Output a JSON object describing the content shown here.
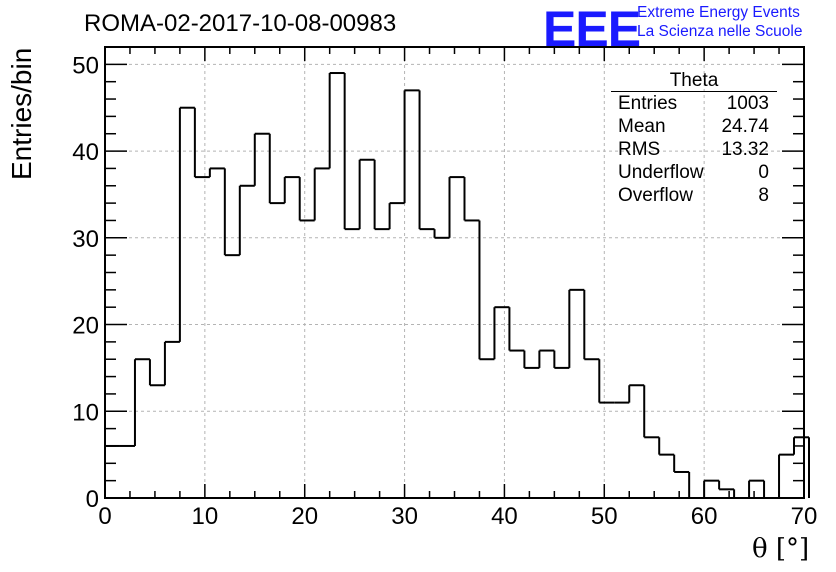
{
  "title": "ROMA-02-2017-10-08-00983",
  "logo": {
    "mark": "EEE",
    "line1": "Extreme Energy Events",
    "line2": "La Scienza nelle Scuole",
    "color": "#1a1aff"
  },
  "stats": {
    "title": "Theta",
    "rows": [
      {
        "label": "Entries",
        "value": "1003"
      },
      {
        "label": "Mean",
        "value": "24.74"
      },
      {
        "label": "RMS",
        "value": "13.32"
      },
      {
        "label": "Underflow",
        "value": "0"
      },
      {
        "label": "Overflow",
        "value": "8"
      }
    ]
  },
  "chart_data": {
    "type": "bar",
    "style": "step-histogram",
    "title": "ROMA-02-2017-10-08-00983",
    "xlabel": "θ [°]",
    "ylabel": "Entries/bin",
    "xlim": [
      0,
      70
    ],
    "ylim": [
      0,
      52
    ],
    "xticks": [
      0,
      10,
      20,
      30,
      40,
      50,
      60,
      70
    ],
    "yticks": [
      0,
      10,
      20,
      30,
      40,
      50
    ],
    "grid": true,
    "bin_width": 1.5,
    "bin_edges_start": 0,
    "values": [
      6,
      6,
      16,
      13,
      18,
      45,
      37,
      38,
      28,
      36,
      42,
      34,
      37,
      32,
      38,
      49,
      31,
      39,
      31,
      34,
      47,
      31,
      30,
      37,
      32,
      16,
      22,
      17,
      15,
      17,
      15,
      24,
      16,
      11,
      11,
      13,
      7,
      5,
      3,
      0,
      2,
      1,
      0,
      2,
      0,
      5,
      7,
      0
    ]
  }
}
